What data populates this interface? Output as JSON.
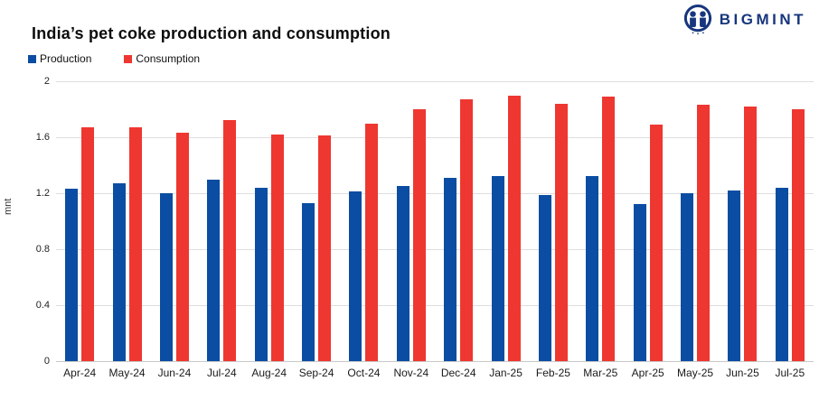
{
  "brand": {
    "name": "BIGMINT",
    "color": "#17367D"
  },
  "chart_data": {
    "type": "bar",
    "title": "India’s pet coke production and consumption",
    "categories": [
      "Apr-24",
      "May-24",
      "Jun-24",
      "Jul-24",
      "Aug-24",
      "Sep-24",
      "Oct-24",
      "Nov-24",
      "Dec-24",
      "Jan-25",
      "Feb-25",
      "Mar-25",
      "Apr-25",
      "May-25",
      "Jun-25",
      "Jul-25"
    ],
    "series": [
      {
        "name": "Production",
        "color": "#0B4DA2",
        "values": [
          1.23,
          1.27,
          1.2,
          1.3,
          1.24,
          1.13,
          1.21,
          1.25,
          1.31,
          1.32,
          1.19,
          1.32,
          1.12,
          1.2,
          1.22,
          1.24
        ]
      },
      {
        "name": "Consumption",
        "color": "#EE3730",
        "values": [
          1.67,
          1.67,
          1.63,
          1.72,
          1.62,
          1.61,
          1.7,
          1.8,
          1.87,
          1.9,
          1.84,
          1.89,
          1.69,
          1.83,
          1.82,
          1.8
        ]
      }
    ],
    "xlabel": "",
    "ylabel": "mnt",
    "ylim": [
      0,
      2
    ],
    "yticks": [
      "2",
      "1.6",
      "1.2",
      "0.8",
      "0.4",
      "0"
    ],
    "grid": true,
    "legend_position": "top-left",
    "gridline_color": "#dedede"
  }
}
